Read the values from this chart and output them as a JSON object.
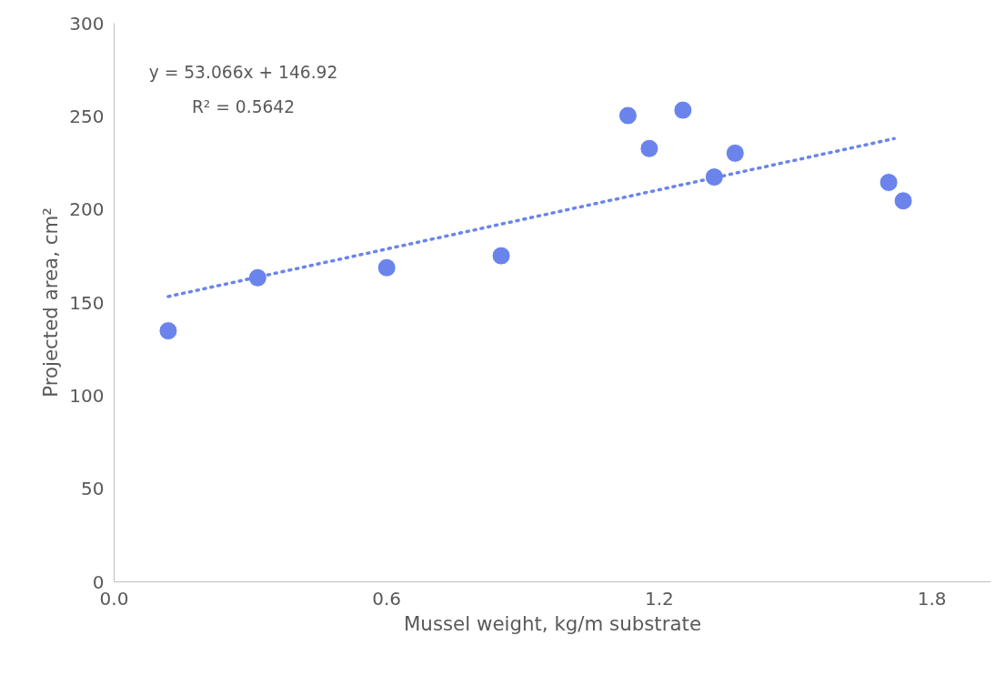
{
  "chart_data": {
    "type": "scatter",
    "xlabel": "Mussel weight, kg/m substrate",
    "ylabel": "Projected area, cm²",
    "xlim": [
      0,
      1.93
    ],
    "ylim": [
      0,
      300
    ],
    "xticks": [
      {
        "value": 0,
        "label": "0.0"
      },
      0.6,
      1.2,
      1.8
    ],
    "yticks": [
      0,
      50,
      100,
      150,
      200,
      250,
      300
    ],
    "grid": false,
    "annotations": [
      "y = 53.066x + 146.92",
      "R² = 0.5642"
    ],
    "series": [
      {
        "marker": "circle",
        "color": "#6a84ec",
        "x": [
          0.119,
          0.316,
          0.6,
          0.852,
          1.131,
          1.178,
          1.252,
          1.321,
          1.367,
          1.705,
          1.737
        ],
        "values": [
          134.8,
          163.3,
          168.7,
          175.1,
          250.4,
          232.7,
          253.3,
          217.4,
          230.2,
          214.5,
          204.6
        ]
      },
      {
        "type": "line",
        "line_style": "dotted",
        "marker": "none",
        "color": "#6a84ec",
        "x": [
          0.119,
          1.717
        ],
        "values": [
          153.2,
          238.0
        ]
      }
    ]
  }
}
